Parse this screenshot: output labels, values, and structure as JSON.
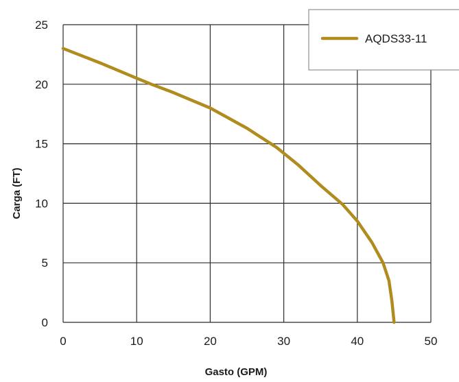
{
  "chart_data": {
    "type": "line",
    "xlabel": "Gasto (GPM)",
    "ylabel": "Carga (FT)",
    "xlim": [
      0,
      50
    ],
    "ylim": [
      0,
      25
    ],
    "xticks": [
      "0",
      "10",
      "20",
      "30",
      "40",
      "50"
    ],
    "yticks": [
      "0",
      "5",
      "10",
      "15",
      "20",
      "25"
    ],
    "grid": true,
    "legend_position": "top-right",
    "series": [
      {
        "name": "AQDS33-11",
        "color": "#b08c1e",
        "x": [
          0,
          5,
          10,
          12,
          15,
          20,
          25,
          29,
          32,
          35,
          38,
          40,
          42,
          43.5,
          44.3,
          44.7,
          45
        ],
        "y": [
          23,
          21.8,
          20.5,
          20,
          19.3,
          18,
          16.3,
          14.7,
          13.2,
          11.5,
          9.9,
          8.5,
          6.7,
          5,
          3.5,
          1.8,
          0
        ]
      }
    ]
  }
}
